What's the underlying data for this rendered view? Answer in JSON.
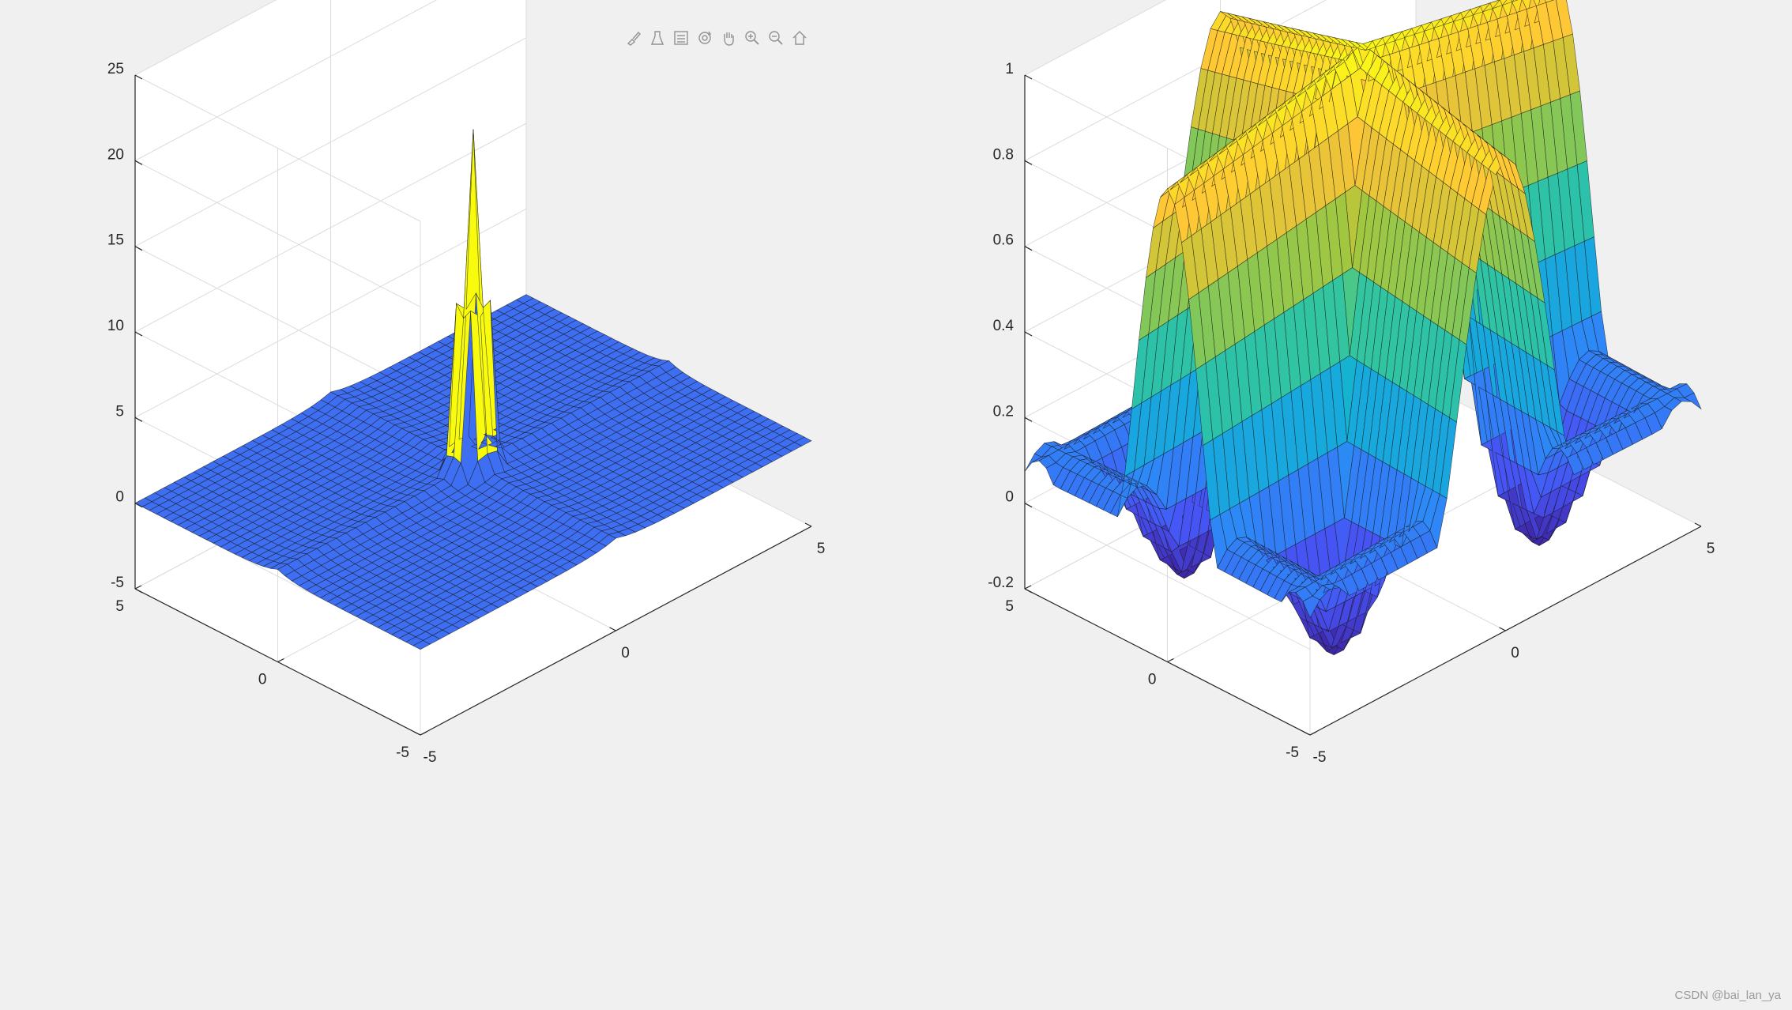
{
  "toolbar": {
    "icons": [
      "brush-icon",
      "data-tip-icon",
      "legend-icon",
      "rotate-3d-icon",
      "pan-icon",
      "zoom-in-icon",
      "zoom-out-icon",
      "home-icon"
    ]
  },
  "watermark": "CSDN @bai_lan_ya",
  "colors": {
    "background": "#f0f0f0",
    "axes_background": "#ffffff",
    "uniform_surface": "#3e6ef2",
    "parula_low": "#3e26a8",
    "parula_mid": "#13beb8",
    "parula_high": "#f9fb0e"
  },
  "chart_data": [
    {
      "type": "surface",
      "title": "",
      "xlabel": "",
      "ylabel": "",
      "zlabel": "",
      "view": "3-D default (azimuth -37.5, elevation 30)",
      "xlim": [
        -5,
        5
      ],
      "ylim": [
        -5,
        5
      ],
      "zlim": [
        -5,
        25
      ],
      "x_ticks": [
        "-5",
        "0",
        "5"
      ],
      "y_ticks": [
        "-5",
        "0",
        "5"
      ],
      "z_ticks": [
        "-5",
        "0",
        "5",
        "10",
        "15",
        "20",
        "25"
      ],
      "grid": true,
      "colormap": "single color (blue) with yellow spike faces",
      "description_of_shape": "flat plane near z = 0 over the square [-5,5]x[-5,5] with ridges along x = 0 and y = 0 and tall narrow spikes near the origin reaching about z = 20"
    },
    {
      "type": "surface",
      "title": "",
      "xlabel": "",
      "ylabel": "",
      "zlabel": "",
      "view": "3-D default (azimuth -37.5, elevation 30)",
      "xlim": [
        -5,
        5
      ],
      "ylim": [
        -5,
        5
      ],
      "zlim": [
        -0.2,
        1
      ],
      "x_ticks": [
        "-5",
        "0",
        "5"
      ],
      "y_ticks": [
        "-5",
        "0",
        "5"
      ],
      "z_ticks": [
        "-0.2",
        "0",
        "0.2",
        "0.4",
        "0.6",
        "0.8",
        "1"
      ],
      "grid": true,
      "colormap": "parula",
      "description_of_shape": "cross-shaped ridge surface along x = 0 and y = 0 reaching z = 1, with damped oscillating ripples between -0.2 and 0.2 away from the ridges"
    }
  ]
}
